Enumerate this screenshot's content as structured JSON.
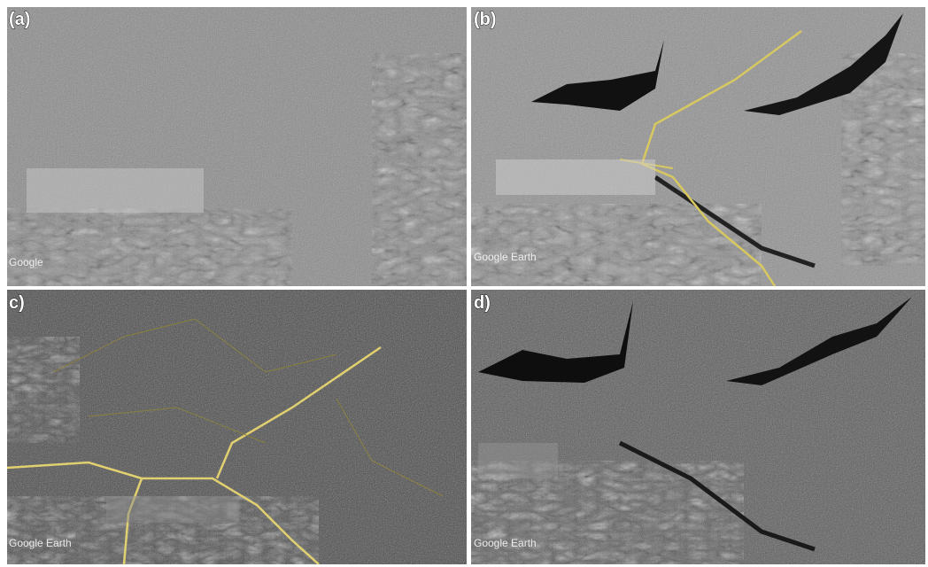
{
  "panels": [
    {
      "label": "(a)",
      "watermark": "Google"
    },
    {
      "label": "(b)",
      "watermark": "Google Earth"
    },
    {
      "label": "c)",
      "watermark": "Google Earth"
    },
    {
      "label": "d)",
      "watermark": "Google Earth"
    }
  ]
}
